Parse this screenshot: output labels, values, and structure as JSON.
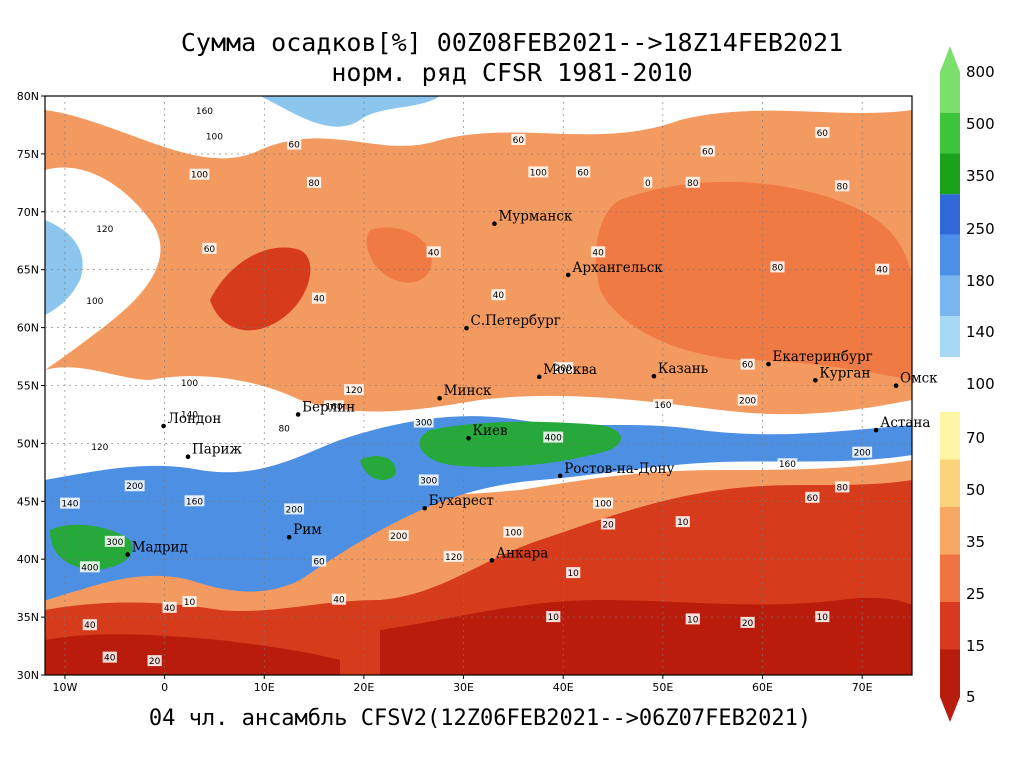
{
  "title": {
    "line1": "Сумма осадков[%] 00Z08FEB2021-->18Z14FEB2021",
    "line2": "норм. ряд CFSR 1981-2010"
  },
  "footer": "04 чл. ансамбль CFSV2(12Z06FEB2021-->06Z07FEB2021)",
  "axes": {
    "lat_labels": [
      "80N",
      "75N",
      "70N",
      "65N",
      "60N",
      "55N",
      "50N",
      "45N",
      "40N",
      "35N",
      "30N"
    ],
    "lon_labels": [
      "10W",
      "0",
      "10E",
      "20E",
      "30E",
      "40E",
      "50E",
      "60E",
      "70E"
    ]
  },
  "cities": [
    {
      "name": "Мурманск",
      "lon": 33.1,
      "lat": 68.97
    },
    {
      "name": "Архангельск",
      "lon": 40.5,
      "lat": 64.55
    },
    {
      "name": "С.Петербург",
      "lon": 30.3,
      "lat": 59.95
    },
    {
      "name": "Москва",
      "lon": 37.6,
      "lat": 55.75
    },
    {
      "name": "Казань",
      "lon": 49.1,
      "lat": 55.8
    },
    {
      "name": "Екатеринбург",
      "lon": 60.6,
      "lat": 56.85
    },
    {
      "name": "Курган",
      "lon": 65.3,
      "lat": 55.45
    },
    {
      "name": "Омск",
      "lon": 73.4,
      "lat": 54.98
    },
    {
      "name": "Астана",
      "lon": 71.4,
      "lat": 51.15
    },
    {
      "name": "Минск",
      "lon": 27.6,
      "lat": 53.9
    },
    {
      "name": "Берлин",
      "lon": 13.4,
      "lat": 52.5
    },
    {
      "name": "Лондон",
      "lon": -0.1,
      "lat": 51.5
    },
    {
      "name": "Париж",
      "lon": 2.35,
      "lat": 48.85
    },
    {
      "name": "Киев",
      "lon": 30.5,
      "lat": 50.45
    },
    {
      "name": "Ростов-на-Дону",
      "lon": 39.7,
      "lat": 47.2
    },
    {
      "name": "Бухарест",
      "lon": 26.1,
      "lat": 44.4
    },
    {
      "name": "Рим",
      "lon": 12.5,
      "lat": 41.9
    },
    {
      "name": "Мадрид",
      "lon": -3.7,
      "lat": 40.4
    },
    {
      "name": "Анкара",
      "lon": 32.85,
      "lat": 39.9
    }
  ],
  "contour_values": [
    {
      "t": "160",
      "lon": 4,
      "lat": 78.7
    },
    {
      "t": "100",
      "lon": 5,
      "lat": 76.5
    },
    {
      "t": "60",
      "lon": 13,
      "lat": 75.8
    },
    {
      "t": "100",
      "lon": 3.5,
      "lat": 73.2
    },
    {
      "t": "80",
      "lon": 15,
      "lat": 72.5
    },
    {
      "t": "120",
      "lon": -6,
      "lat": 68.5
    },
    {
      "t": "60",
      "lon": 4.5,
      "lat": 66.8
    },
    {
      "t": "40",
      "lon": 15.5,
      "lat": 62.5
    },
    {
      "t": "40",
      "lon": 27,
      "lat": 66.5
    },
    {
      "t": "100",
      "lon": -7,
      "lat": 62.3
    },
    {
      "t": "100",
      "lon": 2.5,
      "lat": 55.2
    },
    {
      "t": "140",
      "lon": 2.5,
      "lat": 52.5
    },
    {
      "t": "120",
      "lon": -6.5,
      "lat": 49.7
    },
    {
      "t": "200",
      "lon": -3,
      "lat": 46.3
    },
    {
      "t": "160",
      "lon": 3,
      "lat": 45
    },
    {
      "t": "140",
      "lon": -9.5,
      "lat": 44.8
    },
    {
      "t": "300",
      "lon": -5,
      "lat": 41.5
    },
    {
      "t": "400",
      "lon": -7.5,
      "lat": 39.3
    },
    {
      "t": "60",
      "lon": 35.5,
      "lat": 76.2
    },
    {
      "t": "100",
      "lon": 37.5,
      "lat": 73.4
    },
    {
      "t": "60",
      "lon": 42,
      "lat": 73.4
    },
    {
      "t": "40",
      "lon": 43.5,
      "lat": 66.5
    },
    {
      "t": "40",
      "lon": 33.5,
      "lat": 62.8
    },
    {
      "t": "200",
      "lon": 40,
      "lat": 56.5
    },
    {
      "t": "300",
      "lon": 26,
      "lat": 51.8
    },
    {
      "t": "400",
      "lon": 39,
      "lat": 50.5
    },
    {
      "t": "160",
      "lon": 50,
      "lat": 53.3
    },
    {
      "t": "60",
      "lon": 58.5,
      "lat": 56.8
    },
    {
      "t": "80",
      "lon": 61.5,
      "lat": 65.2
    },
    {
      "t": "40",
      "lon": 72,
      "lat": 65
    },
    {
      "t": "200",
      "lon": 58.5,
      "lat": 53.7
    },
    {
      "t": "160",
      "lon": 62.5,
      "lat": 48.2
    },
    {
      "t": "60",
      "lon": 65,
      "lat": 45.3
    },
    {
      "t": "80",
      "lon": 68,
      "lat": 46.2
    },
    {
      "t": "200",
      "lon": 70,
      "lat": 49.2
    },
    {
      "t": "10",
      "lon": 52,
      "lat": 43.2
    },
    {
      "t": "10",
      "lon": 41,
      "lat": 38.8
    },
    {
      "t": "10",
      "lon": 53,
      "lat": 34.8
    },
    {
      "t": "20",
      "lon": 58.5,
      "lat": 34.5
    },
    {
      "t": "10",
      "lon": 66,
      "lat": 35
    },
    {
      "t": "20",
      "lon": 44.5,
      "lat": 43
    },
    {
      "t": "100",
      "lon": 44,
      "lat": 44.8
    },
    {
      "t": "160",
      "lon": 17,
      "lat": 53.2
    },
    {
      "t": "120",
      "lon": 19,
      "lat": 54.6
    },
    {
      "t": "80",
      "lon": 12,
      "lat": 51.3
    },
    {
      "t": "200",
      "lon": 13,
      "lat": 44.3
    },
    {
      "t": "200",
      "lon": 23.5,
      "lat": 42
    },
    {
      "t": "300",
      "lon": 26.5,
      "lat": 46.8
    },
    {
      "t": "120",
      "lon": 29,
      "lat": 40.2
    },
    {
      "t": "100",
      "lon": 35,
      "lat": 42.3
    },
    {
      "t": "40",
      "lon": 0.5,
      "lat": 35.8
    },
    {
      "t": "10",
      "lon": 2.5,
      "lat": 36.3
    },
    {
      "t": "20",
      "lon": -1,
      "lat": 31.2
    },
    {
      "t": "40",
      "lon": -5.5,
      "lat": 31.5
    },
    {
      "t": "40",
      "lon": -7.5,
      "lat": 34.3
    },
    {
      "t": "60",
      "lon": 15.5,
      "lat": 39.8
    },
    {
      "t": "40",
      "lon": 17.5,
      "lat": 36.5
    },
    {
      "t": "10",
      "lon": 39,
      "lat": 35
    },
    {
      "t": "0",
      "lon": 48.5,
      "lat": 72.5
    },
    {
      "t": "80",
      "lon": 53,
      "lat": 72.5
    },
    {
      "t": "60",
      "lon": 54.5,
      "lat": 75.2
    },
    {
      "t": "60",
      "lon": 66,
      "lat": 76.8
    },
    {
      "t": "80",
      "lon": 68,
      "lat": 72.2
    }
  ],
  "colorbar": {
    "labels": [
      "800",
      "500",
      "350",
      "250",
      "180",
      "140",
      "100",
      "70",
      "50",
      "35",
      "25",
      "15",
      "5"
    ],
    "colors": [
      "#7be06b",
      "#3cc43a",
      "#1aa21b",
      "#2f68d8",
      "#4b8fe6",
      "#79b6f0",
      "#a5d8f3",
      "#ffffff",
      "#fff6a3",
      "#fbd37b",
      "#f8a862",
      "#ef7441",
      "#d9391f",
      "#b71c0c"
    ]
  },
  "palette": {
    "ocean_bg": "#f39a60",
    "red_dark": "#b91c0a",
    "red": "#d63c1c",
    "orange": "#ef7a43",
    "light_orange": "#f6a862",
    "peach": "#fbd18a",
    "yellow": "#fff1a8",
    "white": "#ffffff",
    "pale_blue": "#bfe6f5",
    "light_blue": "#8cc6ef",
    "blue": "#4d8fe2",
    "deep_blue": "#2f66cc",
    "green": "#27a83a",
    "light_green": "#63cf58"
  }
}
